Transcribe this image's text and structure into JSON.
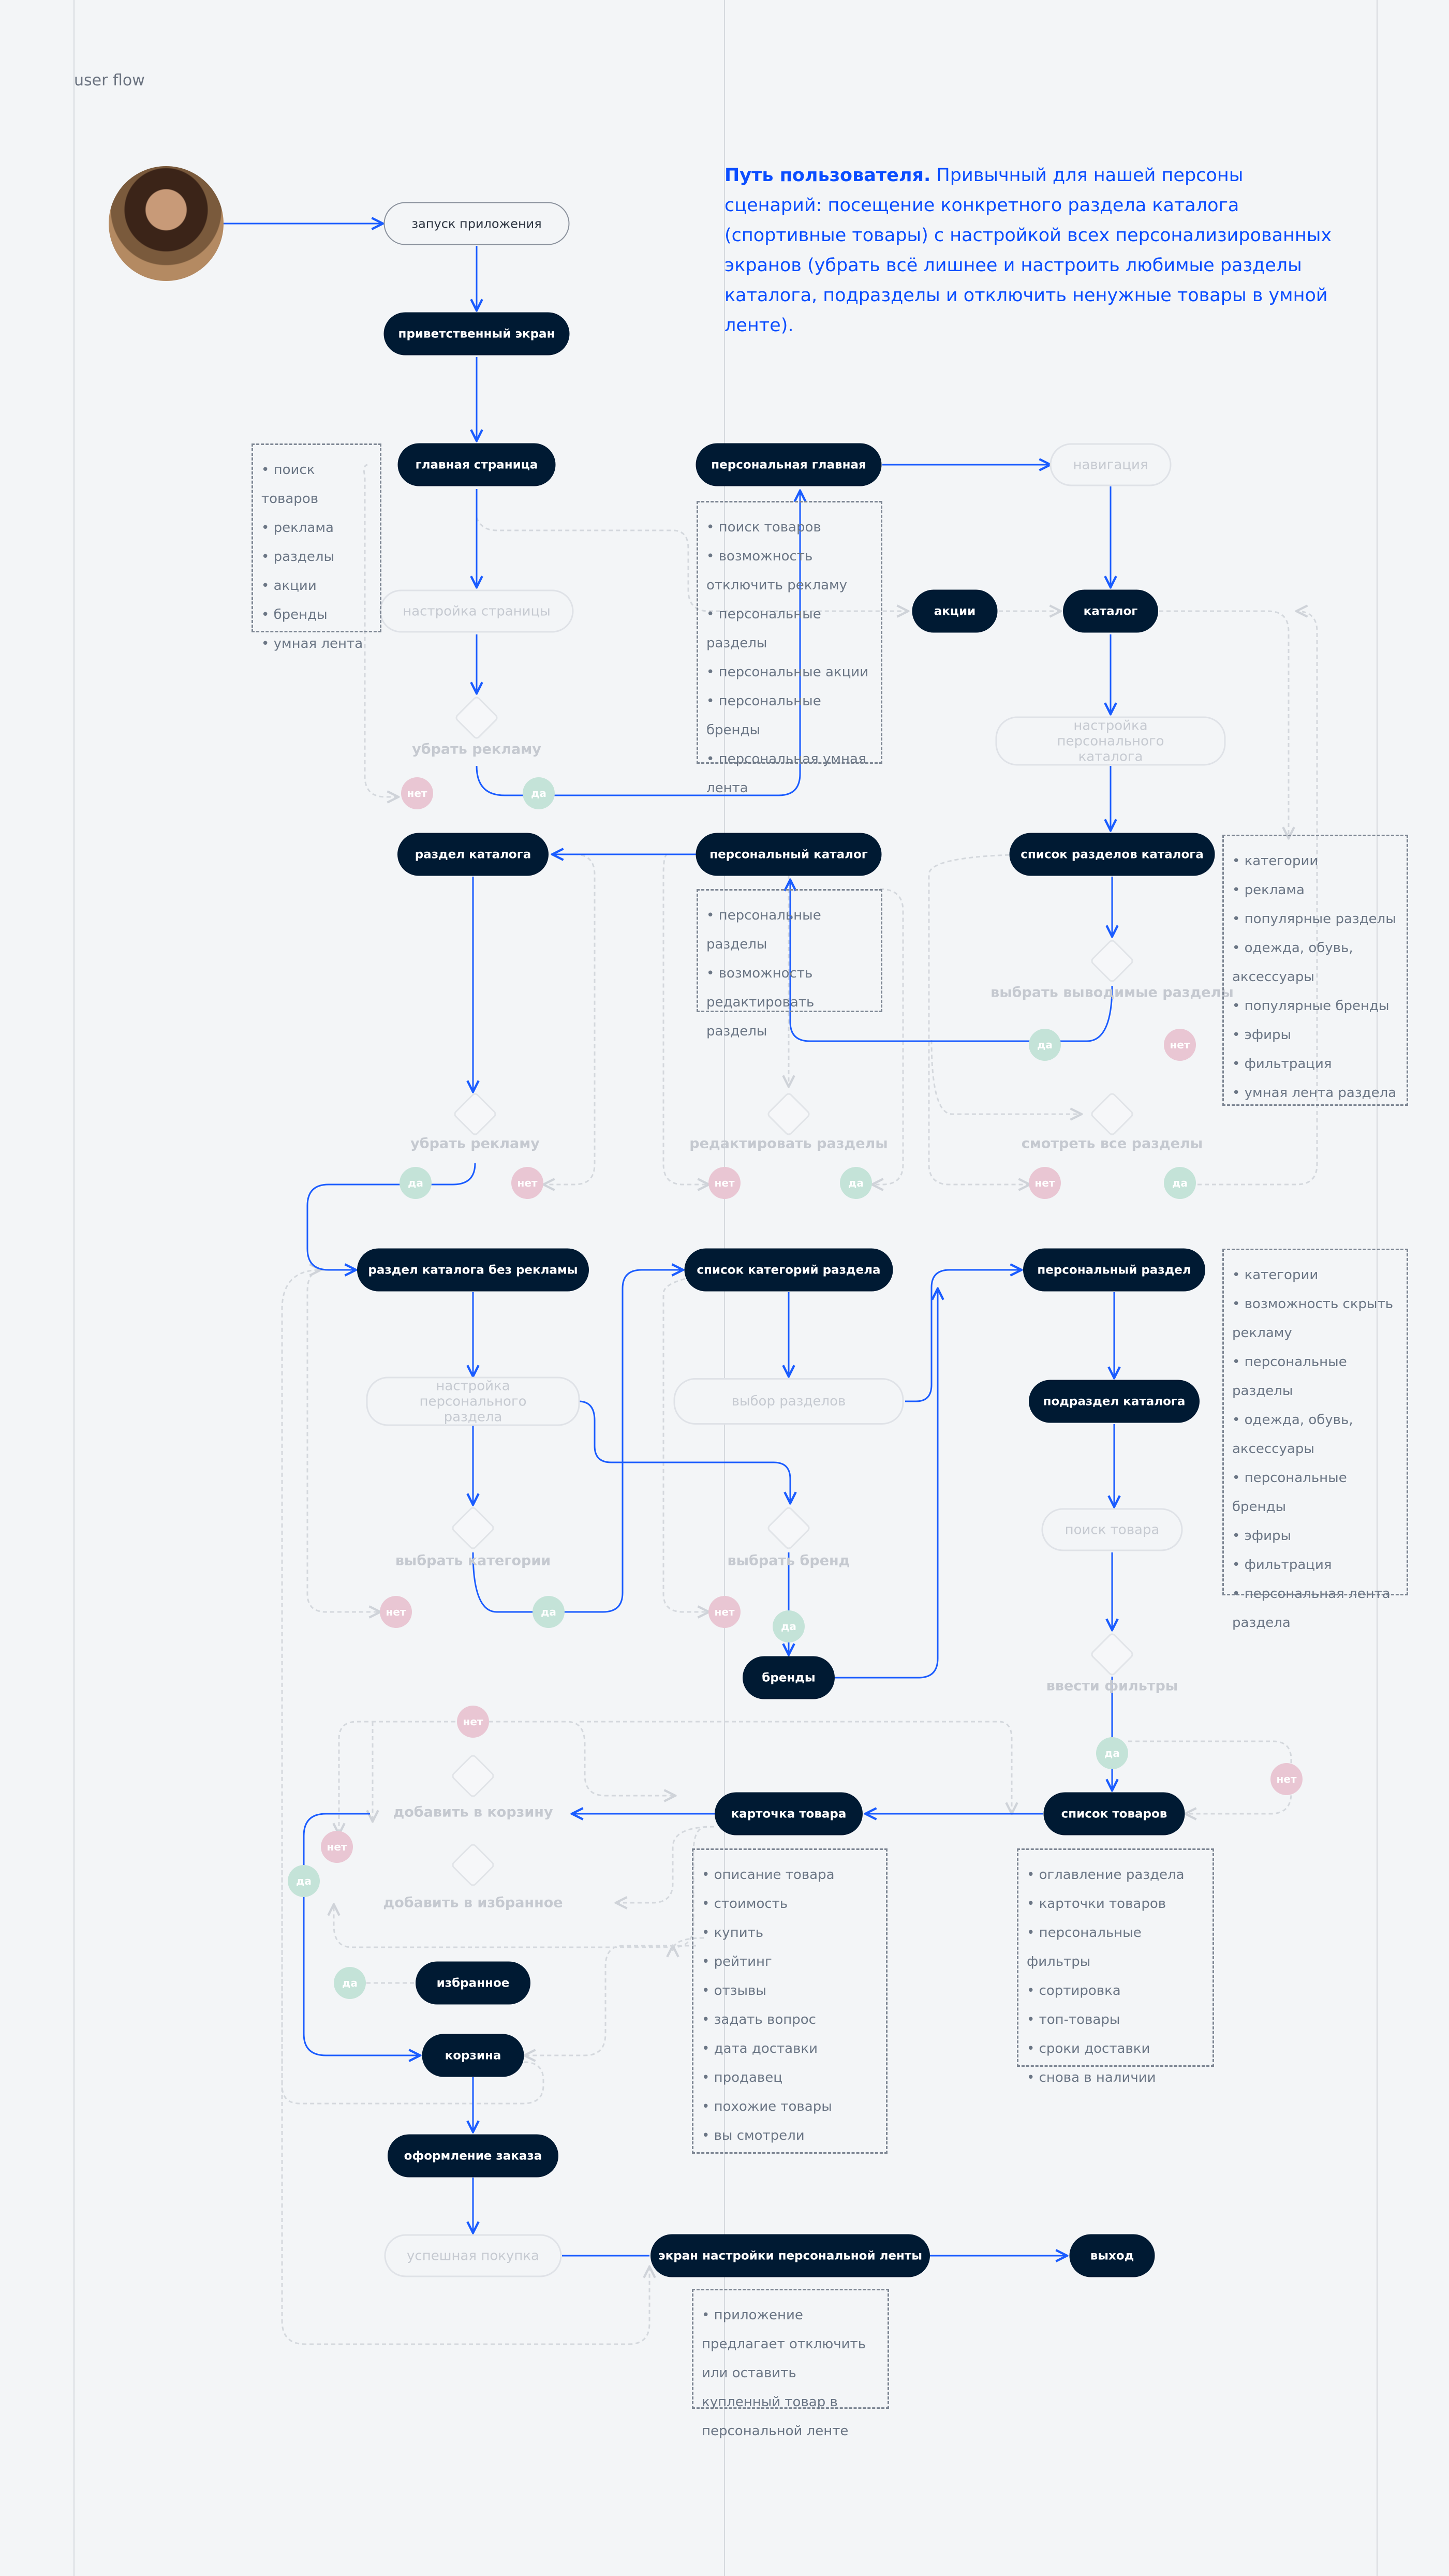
{
  "title": "user flow",
  "description": {
    "bold": "Путь пользователя.",
    "text": " Привычный для нашей персоны сценарий: посещение конкретного раздела каталога (спортивные товары) с настройкой всех персонализированных экранов (убрать всё лишнее и настроить любимые разделы каталога, подразделы и отключить ненужные товары в умной ленте)."
  },
  "colors": {
    "accent": "#1a5cff",
    "node_dark": "#001a33",
    "yes": "#c4e3d8",
    "no": "#e9c6d3",
    "background": "#f3f5f7"
  },
  "avatar": "user-photo",
  "nodes": [
    {
      "label": "запуск приложения",
      "style": "start"
    },
    {
      "label": "приветственный экран",
      "style": "dark"
    },
    {
      "label": "главная страница",
      "style": "dark"
    },
    {
      "label": "персональная главная",
      "style": "dark"
    },
    {
      "label": "навигация",
      "style": "faded"
    },
    {
      "label": "настройка страницы",
      "style": "faded"
    },
    {
      "label": "акции",
      "style": "dark"
    },
    {
      "label": "каталог",
      "style": "dark"
    },
    {
      "label": "настройка персонального каталога",
      "style": "faded"
    },
    {
      "label": "раздел каталога",
      "style": "dark"
    },
    {
      "label": "персональный каталог",
      "style": "dark"
    },
    {
      "label": "список разделов каталога",
      "style": "dark"
    },
    {
      "label": "раздел каталога без рекламы",
      "style": "dark"
    },
    {
      "label": "список категорий раздела",
      "style": "dark"
    },
    {
      "label": "персональный раздел",
      "style": "dark"
    },
    {
      "label": "настройка персонального раздела",
      "style": "faded"
    },
    {
      "label": "выбор разделов",
      "style": "faded"
    },
    {
      "label": "подраздел каталога",
      "style": "dark"
    },
    {
      "label": "поиск товара",
      "style": "faded"
    },
    {
      "label": "бренды",
      "style": "dark"
    },
    {
      "label": "карточка товара",
      "style": "dark"
    },
    {
      "label": "список товаров",
      "style": "dark"
    },
    {
      "label": "избранное",
      "style": "dark"
    },
    {
      "label": "корзина",
      "style": "dark"
    },
    {
      "label": "оформление заказа",
      "style": "dark"
    },
    {
      "label": "успешная покупка",
      "style": "faded"
    },
    {
      "label": "экран настройки персональной ленты",
      "style": "dark"
    },
    {
      "label": "выход",
      "style": "dark"
    }
  ],
  "decisions": [
    {
      "label": "убрать рекламу"
    },
    {
      "label": "выбрать выводимые разделы"
    },
    {
      "label": "убрать рекламу"
    },
    {
      "label": "редактировать разделы"
    },
    {
      "label": "смотреть все разделы"
    },
    {
      "label": "выбрать категории"
    },
    {
      "label": "выбрать бренд"
    },
    {
      "label": "ввести фильтры"
    },
    {
      "label": "добавить в корзину"
    },
    {
      "label": "добавить в избранное"
    }
  ],
  "badges": [
    {
      "label": "нет",
      "type": "no"
    },
    {
      "label": "да",
      "type": "yes"
    },
    {
      "label": "да",
      "type": "yes"
    },
    {
      "label": "нет",
      "type": "no"
    },
    {
      "label": "да",
      "type": "yes"
    },
    {
      "label": "нет",
      "type": "no"
    },
    {
      "label": "нет",
      "type": "no"
    },
    {
      "label": "да",
      "type": "yes"
    },
    {
      "label": "нет",
      "type": "no"
    },
    {
      "label": "да",
      "type": "yes"
    },
    {
      "label": "нет",
      "type": "no"
    },
    {
      "label": "да",
      "type": "yes"
    },
    {
      "label": "нет",
      "type": "no"
    },
    {
      "label": "да",
      "type": "yes"
    },
    {
      "label": "нет",
      "type": "no"
    },
    {
      "label": "да",
      "type": "yes"
    },
    {
      "label": "нет",
      "type": "no"
    },
    {
      "label": "нет",
      "type": "no"
    },
    {
      "label": "да",
      "type": "yes"
    },
    {
      "label": "да",
      "type": "yes"
    }
  ],
  "lists": [
    {
      "items": [
        "• поиск товаров",
        "• реклама",
        "• разделы",
        "• акции",
        "• бренды",
        "• умная лента"
      ]
    },
    {
      "items": [
        "• поиск товаров",
        "• возможность отключить рекламу",
        "• персональные разделы",
        "• персональные акции",
        "• персональные бренды",
        "• персональная умная лента"
      ]
    },
    {
      "items": [
        "• персональные разделы",
        "• возможность редактировать разделы"
      ]
    },
    {
      "items": [
        "• категории",
        "• реклама",
        "• популярные разделы",
        "• одежда, обувь, аксессуары",
        "• популярные бренды",
        "• эфиры",
        "• фильтрация",
        "• умная лента раздела"
      ]
    },
    {
      "items": [
        "• категории",
        "• возможность скрыть рекламу",
        "• персональные разделы",
        "• одежда, обувь, аксессуары",
        "• персональные бренды",
        "• эфиры",
        "• фильтрация",
        "• персональная лента раздела"
      ]
    },
    {
      "items": [
        "• описание товара",
        "• стоимость",
        "• купить",
        "• рейтинг",
        "• отзывы",
        "• задать вопрос",
        "• дата доставки",
        "• продавец",
        "• похожие товары",
        "• вы смотрели"
      ]
    },
    {
      "items": [
        "• оглавление раздела",
        "• карточки товаров",
        "• персональные фильтры",
        "• сортировка",
        "• топ-товары",
        "• сроки доставки",
        "• снова в наличии"
      ]
    },
    {
      "items": [
        "• приложение предлагает отключить или оставить купленный товар в персональной ленте"
      ]
    }
  ]
}
